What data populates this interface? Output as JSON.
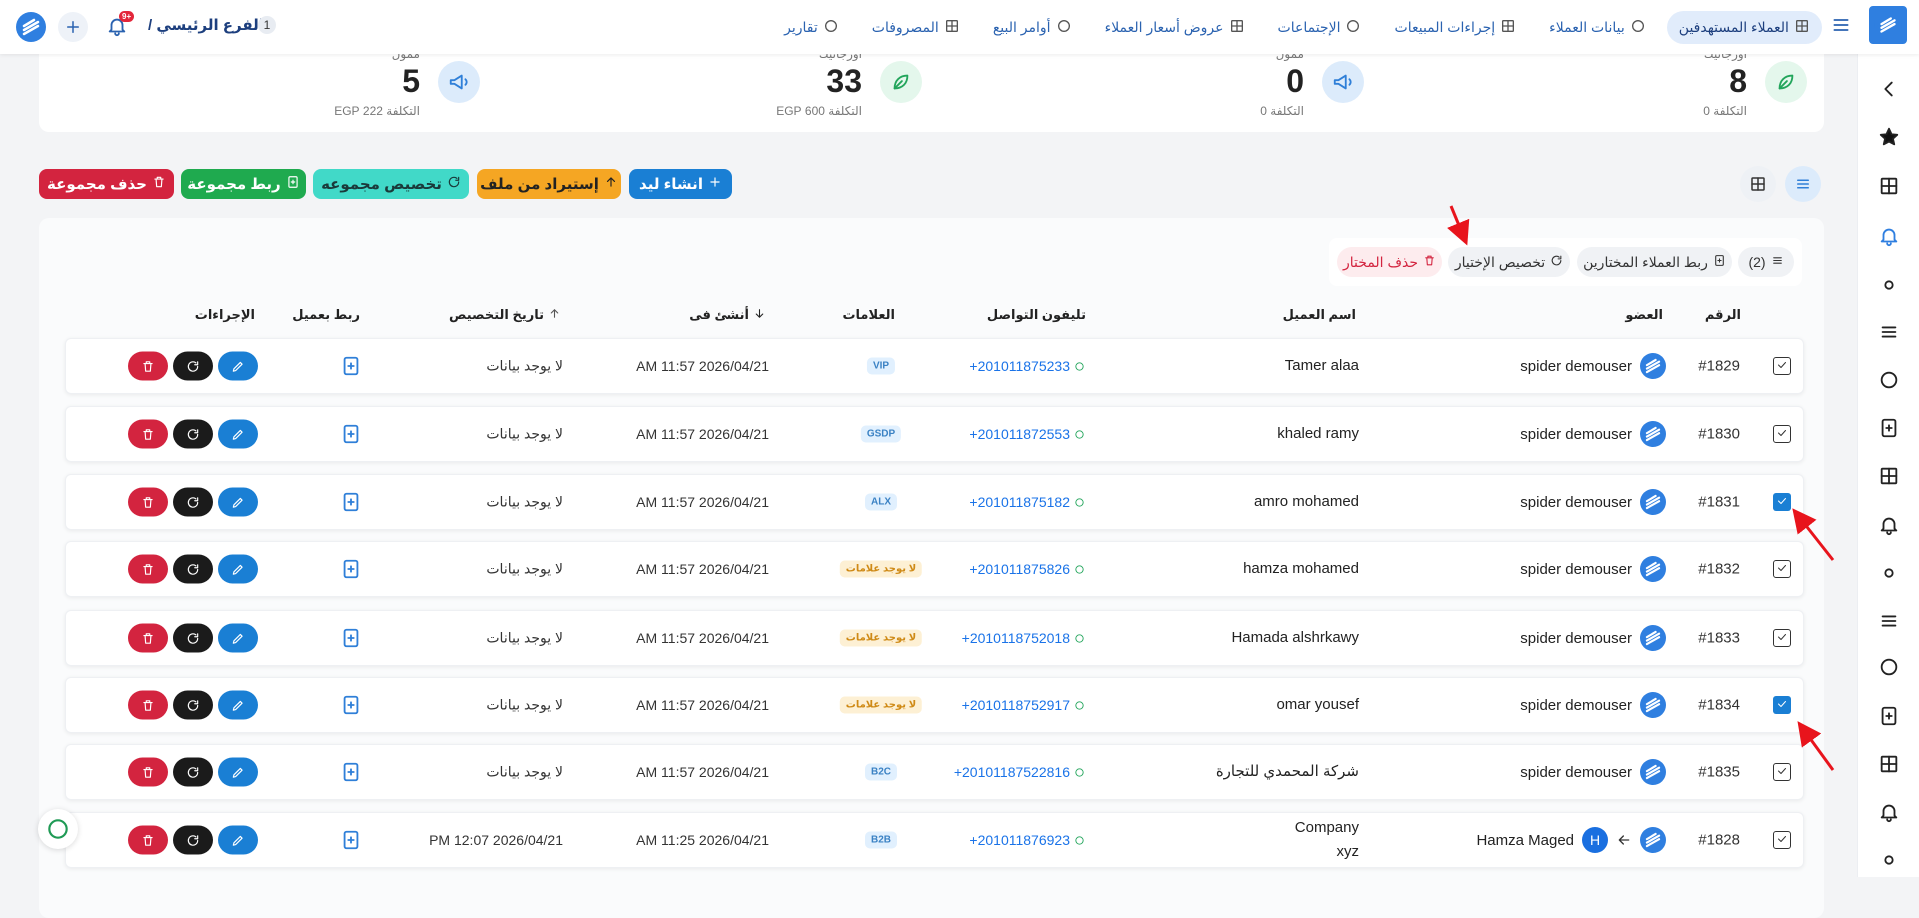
{
  "nav": {
    "items": [
      "العملاء المستهدفين",
      "بيانات العملاء",
      "إجراءات المبيعات",
      "الإجتماعات",
      "عروض أسعار العملاء",
      "أوامر البيع",
      "المصروفات",
      "تقارير"
    ],
    "branch": "الفرع الرئيسي /",
    "branch_number": "1",
    "notifications": "9+"
  },
  "stats": [
    {
      "label": "أورجانيك",
      "value": 8,
      "cost": "التكلفة 0"
    },
    {
      "label": "ممول",
      "value": 0,
      "cost": "التكلفة 0"
    },
    {
      "label": "أورجانيك",
      "value": 33,
      "cost": "التكلفة 600 EGP"
    },
    {
      "label": "ممول",
      "value": 5,
      "cost": "التكلفة 222 EGP"
    }
  ],
  "actions": [
    "انشاء ليد",
    "إستيراد من ملف",
    "تخصيص مجموعه",
    "ربط مجموعة",
    "حذف مجموعة"
  ],
  "selection": {
    "count": "(2)",
    "link": "ربط العملاء المختارين",
    "assign": "تخصيص الإختيار",
    "delete": "حذف المختار"
  },
  "table": {
    "headers": [
      "الرقم",
      "العضو",
      "اسم العميل",
      "تليفون التواصل",
      "العلامات",
      "أنشئ فى",
      "تاريخ التخصيص",
      "ربط بعميل",
      "الإجراءات"
    ],
    "rows": [
      {
        "id": "#1829",
        "member": "spider demouser",
        "name": "Tamer alaa",
        "phone": "+201011875233",
        "tag": "VIP",
        "created": "2026/04/21 11:57 AM",
        "assigned": "لا يوجد بيانات",
        "selected": false
      },
      {
        "id": "#1830",
        "member": "spider demouser",
        "name": "khaled ramy",
        "phone": "+201011872553",
        "tag": "GSDP",
        "created": "2026/04/21 11:57 AM",
        "assigned": "لا يوجد بيانات",
        "selected": false
      },
      {
        "id": "#1831",
        "member": "spider demouser",
        "name": "amro mohamed",
        "phone": "+201011875182",
        "tag": "ALX",
        "created": "2026/04/21 11:57 AM",
        "assigned": "لا يوجد بيانات",
        "selected": true
      },
      {
        "id": "#1832",
        "member": "spider demouser",
        "name": "hamza mohamed",
        "phone": "+201011875826",
        "tag": "لا يوجد علامات",
        "created": "2026/04/21 11:57 AM",
        "assigned": "لا يوجد بيانات",
        "selected": false
      },
      {
        "id": "#1833",
        "member": "spider demouser",
        "name": "Hamada alshrkawy",
        "phone": "+2010118752018",
        "tag": "لا يوجد علامات",
        "created": "2026/04/21 11:57 AM",
        "assigned": "لا يوجد بيانات",
        "selected": false
      },
      {
        "id": "#1834",
        "member": "spider demouser",
        "name": "omar yousef",
        "phone": "+2010118752917",
        "tag": "لا يوجد علامات",
        "created": "2026/04/21 11:57 AM",
        "assigned": "لا يوجد بيانات",
        "selected": true
      },
      {
        "id": "#1835",
        "member": "spider demouser",
        "name": "شركة المحمدي للتجارة",
        "phone": "+20101187522816",
        "tag": "B2C",
        "created": "2026/04/21 11:57 AM",
        "assigned": "لا يوجد بيانات",
        "selected": false
      },
      {
        "id": "#1828",
        "member": "Hamza Maged",
        "member_initial": "H",
        "name": "Company\nxyz",
        "phone": "+201011876923",
        "tag": "B2B",
        "created": "2026/04/21 11:25 AM",
        "assigned": "2026/04/21 12:07 PM",
        "selected": false
      }
    ]
  }
}
